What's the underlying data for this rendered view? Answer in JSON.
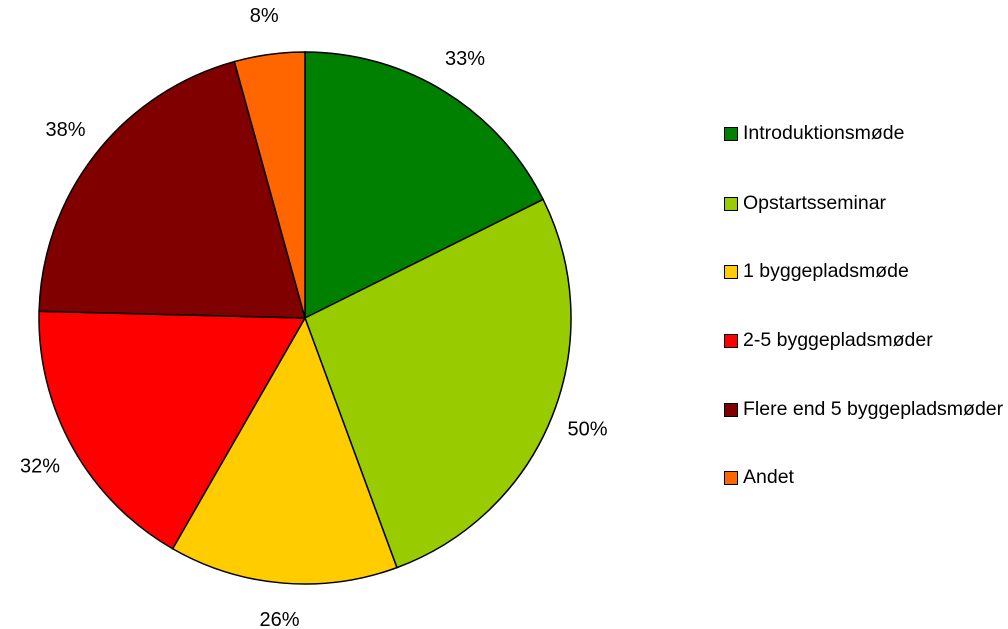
{
  "chart_data": {
    "type": "pie",
    "categories": [
      "Introduktionsmøde",
      "Opstartsseminar",
      "1 byggepladsmøde",
      "2-5 byggepladsmøder",
      "Flere end 5 byggepladsmøder",
      "Andet"
    ],
    "values": [
      33,
      50,
      26,
      32,
      38,
      8
    ],
    "value_labels": [
      "33%",
      "50%",
      "26%",
      "32%",
      "38%",
      "8%"
    ],
    "colors": [
      "#008000",
      "#99cc00",
      "#ffcc00",
      "#ff0000",
      "#800000",
      "#ff6600"
    ],
    "legend": "right"
  }
}
